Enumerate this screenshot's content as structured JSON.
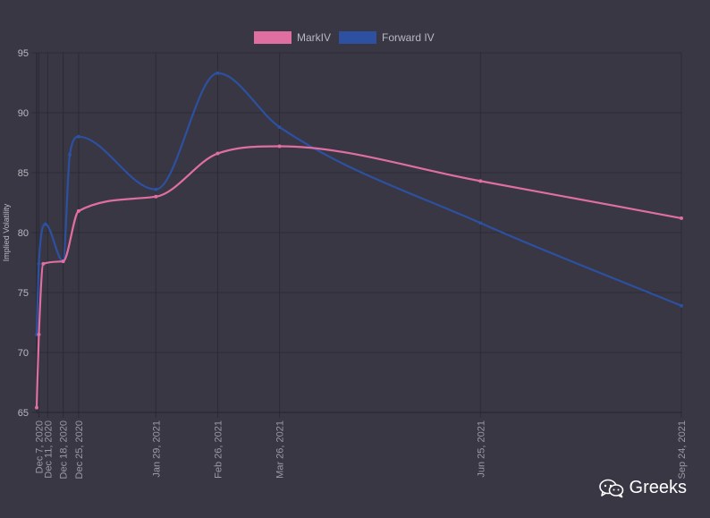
{
  "chart_data": {
    "type": "line",
    "ylabel": "Implied Volatility",
    "ylim": [
      65,
      95
    ],
    "yticks": [
      65,
      70,
      75,
      80,
      85,
      90,
      95
    ],
    "grid": true,
    "legend_position": "top-center",
    "x_ticks": [
      "Dec 7, 2020",
      "Dec 11, 2020",
      "Dec 18, 2020",
      "Dec 25, 2020",
      "Jan 29, 2021",
      "Feb 26, 2021",
      "Mar 26, 2021",
      "Jun 25, 2021",
      "Sep 24, 2021"
    ],
    "series": [
      {
        "name": "MarkIV",
        "color": "#e06fa1",
        "points": [
          {
            "x": "2020-12-06",
            "y": 65.4
          },
          {
            "x": "2020-12-07",
            "y": 71.5
          },
          {
            "x": "2020-12-09",
            "y": 77.4
          },
          {
            "x": "2020-12-18",
            "y": 77.6
          },
          {
            "x": "2020-12-25",
            "y": 81.8
          },
          {
            "x": "2021-01-29",
            "y": 83.0
          },
          {
            "x": "2021-02-26",
            "y": 86.6
          },
          {
            "x": "2021-03-26",
            "y": 87.2
          },
          {
            "x": "2021-06-25",
            "y": 84.3
          },
          {
            "x": "2021-09-24",
            "y": 81.2
          }
        ]
      },
      {
        "name": "Forward IV",
        "color": "#2d50a0",
        "points": [
          {
            "x": "2020-12-06",
            "y": 71.5
          },
          {
            "x": "2020-12-07",
            "y": 77.4
          },
          {
            "x": "2020-12-10",
            "y": 80.7
          },
          {
            "x": "2020-12-18",
            "y": 77.6
          },
          {
            "x": "2020-12-21",
            "y": 86.5
          },
          {
            "x": "2020-12-25",
            "y": 88.0
          },
          {
            "x": "2021-01-29",
            "y": 83.6
          },
          {
            "x": "2021-02-26",
            "y": 93.3
          },
          {
            "x": "2021-03-26",
            "y": 88.8
          },
          {
            "x": "2021-06-25",
            "y": 80.8
          },
          {
            "x": "2021-09-24",
            "y": 73.9
          }
        ]
      }
    ]
  },
  "watermark": {
    "text": "Greeks",
    "icon": "wechat-icon"
  }
}
